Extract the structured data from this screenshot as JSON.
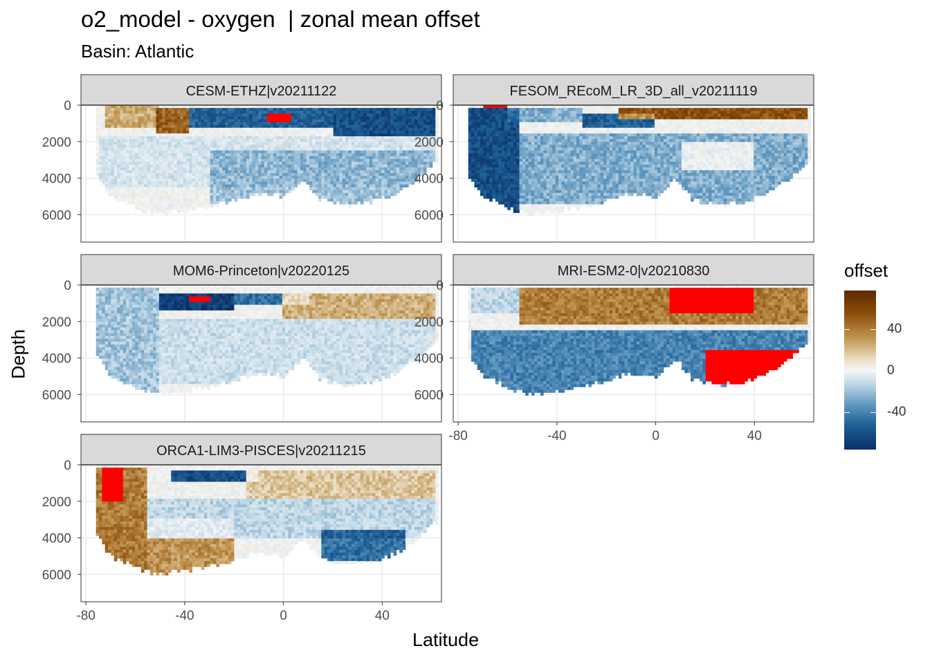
{
  "chart_data": {
    "type": "heatmap",
    "title": "o2_model - oxygen  | zonal mean offset",
    "subtitle": "Basin: Atlantic",
    "xlabel": "Latitude",
    "ylabel": "Depth",
    "xlim": [
      -82,
      64
    ],
    "ylim": [
      0,
      7500
    ],
    "y_reversed": true,
    "x_ticks": [
      -80,
      -40,
      0,
      40
    ],
    "y_ticks": [
      0,
      2000,
      4000,
      6000
    ],
    "grid": true,
    "legend": {
      "title": "offset",
      "position": "right",
      "ticks": [
        40,
        0,
        -40
      ],
      "range": [
        -60,
        60
      ],
      "colors": [
        "#0a2f66",
        "#1c5e95",
        "#5f97bf",
        "#c5dbe8",
        "#f5f5f5",
        "#e9ddc2",
        "#c09450",
        "#8b4c0a",
        "#5a2a00"
      ],
      "out_of_range_color": "#ff0000"
    },
    "panels": [
      {
        "name": "CESM-ETHZ|v20211122",
        "bottom_depth_profile": [
          [
            -77,
            3600
          ],
          [
            -70,
            5000
          ],
          [
            -60,
            5600
          ],
          [
            -52,
            6000
          ],
          [
            -40,
            5800
          ],
          [
            -30,
            5600
          ],
          [
            -20,
            5200
          ],
          [
            -10,
            4800
          ],
          [
            0,
            5000
          ],
          [
            8,
            4000
          ],
          [
            15,
            5200
          ],
          [
            25,
            5500
          ],
          [
            35,
            5300
          ],
          [
            45,
            4900
          ],
          [
            55,
            4000
          ],
          [
            62,
            3100
          ]
        ],
        "features": [
          {
            "kind": "patch",
            "lat": [
              -72,
              -50
            ],
            "depth": [
              0,
              1200
            ],
            "value": 25
          },
          {
            "kind": "patch",
            "lat": [
              -52,
              -38
            ],
            "depth": [
              100,
              1500
            ],
            "value": 40
          },
          {
            "kind": "patch",
            "lat": [
              -38,
              20
            ],
            "depth": [
              100,
              1300
            ],
            "value": -45
          },
          {
            "kind": "patch",
            "lat": [
              20,
              62
            ],
            "depth": [
              100,
              1700
            ],
            "value": -50
          },
          {
            "kind": "patch",
            "lat": [
              -75,
              62
            ],
            "depth": [
              1700,
              4500
            ],
            "value": -10
          },
          {
            "kind": "patch",
            "lat": [
              -30,
              62
            ],
            "depth": [
              2500,
              5500
            ],
            "value": -20
          },
          {
            "kind": "patch",
            "lat": [
              -6,
              3
            ],
            "depth": [
              400,
              900
            ],
            "value": 90
          }
        ]
      },
      {
        "name": "FESOM_REcoM_LR_3D_all_v20211119",
        "bottom_depth_profile": [
          [
            -77,
            3600
          ],
          [
            -70,
            5000
          ],
          [
            -60,
            5600
          ],
          [
            -52,
            6000
          ],
          [
            -40,
            5800
          ],
          [
            -30,
            5600
          ],
          [
            -20,
            5200
          ],
          [
            -10,
            4800
          ],
          [
            0,
            5000
          ],
          [
            8,
            4000
          ],
          [
            15,
            5200
          ],
          [
            25,
            5500
          ],
          [
            35,
            5300
          ],
          [
            45,
            4900
          ],
          [
            55,
            4000
          ],
          [
            62,
            3100
          ]
        ],
        "features": [
          {
            "kind": "patch",
            "lat": [
              -78,
              -55
            ],
            "depth": [
              100,
              6000
            ],
            "value": -50
          },
          {
            "kind": "patch",
            "lat": [
              -60,
              -30
            ],
            "depth": [
              200,
              1000
            ],
            "value": -25
          },
          {
            "kind": "patch",
            "lat": [
              -30,
              0
            ],
            "depth": [
              500,
              1200
            ],
            "value": -45
          },
          {
            "kind": "patch",
            "lat": [
              -15,
              62
            ],
            "depth": [
              100,
              800
            ],
            "value": 45
          },
          {
            "kind": "patch",
            "lat": [
              -55,
              62
            ],
            "depth": [
              1500,
              5500
            ],
            "value": -25
          },
          {
            "kind": "patch",
            "lat": [
              10,
              40
            ],
            "depth": [
              2000,
              3500
            ],
            "value": 5
          },
          {
            "kind": "patch",
            "lat": [
              -70,
              -60
            ],
            "depth": [
              0,
              200
            ],
            "value": 90
          }
        ]
      },
      {
        "name": "MOM6-Princeton|v20220125",
        "bottom_depth_profile": [
          [
            -77,
            3600
          ],
          [
            -70,
            5000
          ],
          [
            -60,
            5600
          ],
          [
            -52,
            6000
          ],
          [
            -40,
            5800
          ],
          [
            -30,
            5600
          ],
          [
            -20,
            5200
          ],
          [
            -10,
            4800
          ],
          [
            0,
            5000
          ],
          [
            8,
            4000
          ],
          [
            15,
            5200
          ],
          [
            25,
            5500
          ],
          [
            35,
            5300
          ],
          [
            45,
            4900
          ],
          [
            55,
            4000
          ],
          [
            62,
            3100
          ]
        ],
        "features": [
          {
            "kind": "patch",
            "lat": [
              -78,
              -50
            ],
            "depth": [
              100,
              6000
            ],
            "value": -20
          },
          {
            "kind": "patch",
            "lat": [
              -50,
              -20
            ],
            "depth": [
              400,
              1400
            ],
            "value": -55
          },
          {
            "kind": "patch",
            "lat": [
              -20,
              10
            ],
            "depth": [
              500,
              1100
            ],
            "value": -40
          },
          {
            "kind": "patch",
            "lat": [
              0,
              62
            ],
            "depth": [
              500,
              1800
            ],
            "value": 25
          },
          {
            "kind": "patch",
            "lat": [
              -50,
              62
            ],
            "depth": [
              1800,
              5500
            ],
            "value": -12
          },
          {
            "kind": "patch",
            "lat": [
              -38,
              -30
            ],
            "depth": [
              600,
              1000
            ],
            "value": 90
          }
        ]
      },
      {
        "name": "MRI-ESM2-0|v20210830",
        "bottom_depth_profile": [
          [
            -77,
            3600
          ],
          [
            -70,
            5000
          ],
          [
            -60,
            5600
          ],
          [
            -52,
            6000
          ],
          [
            -40,
            5800
          ],
          [
            -30,
            5600
          ],
          [
            -20,
            5200
          ],
          [
            -10,
            4800
          ],
          [
            0,
            5000
          ],
          [
            8,
            4000
          ],
          [
            15,
            5200
          ],
          [
            25,
            5500
          ],
          [
            35,
            5300
          ],
          [
            45,
            4900
          ],
          [
            55,
            4000
          ],
          [
            62,
            3100
          ]
        ],
        "features": [
          {
            "kind": "patch",
            "lat": [
              -75,
              -55
            ],
            "depth": [
              100,
              1500
            ],
            "value": -15
          },
          {
            "kind": "patch",
            "lat": [
              -55,
              62
            ],
            "depth": [
              100,
              2200
            ],
            "value": 35
          },
          {
            "kind": "patch",
            "lat": [
              5,
              40
            ],
            "depth": [
              200,
              1600
            ],
            "value": 55
          },
          {
            "kind": "patch",
            "lat": [
              -75,
              62
            ],
            "depth": [
              2500,
              6000
            ],
            "value": -35
          },
          {
            "kind": "patch",
            "lat": [
              20,
              62
            ],
            "depth": [
              3500,
              5500
            ],
            "value": -50
          },
          {
            "kind": "patch",
            "lat": [
              8,
              20
            ],
            "depth": [
              400,
              900
            ],
            "value": 90
          }
        ]
      },
      {
        "name": "ORCA1-LIM3-PISCES|v20211215",
        "bottom_depth_profile": [
          [
            -77,
            3600
          ],
          [
            -70,
            5000
          ],
          [
            -60,
            5600
          ],
          [
            -52,
            6000
          ],
          [
            -40,
            5800
          ],
          [
            -30,
            5600
          ],
          [
            -20,
            5200
          ],
          [
            -10,
            4800
          ],
          [
            0,
            5000
          ],
          [
            8,
            4000
          ],
          [
            15,
            5200
          ],
          [
            25,
            5500
          ],
          [
            35,
            5300
          ],
          [
            45,
            4900
          ],
          [
            55,
            4000
          ],
          [
            62,
            3100
          ]
        ],
        "features": [
          {
            "kind": "patch",
            "lat": [
              -76,
              -55
            ],
            "depth": [
              100,
              6000
            ],
            "value": 35
          },
          {
            "kind": "patch",
            "lat": [
              -74,
              -65
            ],
            "depth": [
              100,
              2000
            ],
            "value": 60
          },
          {
            "kind": "patch",
            "lat": [
              -55,
              -20
            ],
            "depth": [
              3000,
              6000
            ],
            "value": 30
          },
          {
            "kind": "patch",
            "lat": [
              -45,
              -10
            ],
            "depth": [
              300,
              1000
            ],
            "value": -50
          },
          {
            "kind": "patch",
            "lat": [
              -15,
              62
            ],
            "depth": [
              300,
              1800
            ],
            "value": 20
          },
          {
            "kind": "patch",
            "lat": [
              -55,
              62
            ],
            "depth": [
              1800,
              4000
            ],
            "value": -15
          },
          {
            "kind": "patch",
            "lat": [
              15,
              50
            ],
            "depth": [
              3500,
              5200
            ],
            "value": -40
          }
        ]
      }
    ]
  }
}
